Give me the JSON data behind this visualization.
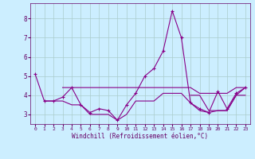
{
  "xlabel": "Windchill (Refroidissement éolien,°C)",
  "background_color": "#cceeff",
  "grid_color": "#aacccc",
  "line_color": "#880088",
  "hours": [
    0,
    1,
    2,
    3,
    4,
    5,
    6,
    7,
    8,
    9,
    10,
    11,
    12,
    13,
    14,
    15,
    16,
    17,
    18,
    19,
    20,
    21,
    22,
    23
  ],
  "line1": [
    5.1,
    3.7,
    3.7,
    3.9,
    4.4,
    3.5,
    3.1,
    3.3,
    3.2,
    2.7,
    3.5,
    4.1,
    5.0,
    5.4,
    6.3,
    8.4,
    7.0,
    3.6,
    3.3,
    3.1,
    4.2,
    3.3,
    4.1,
    4.4
  ],
  "line2_x": [
    3,
    4,
    5,
    6,
    7,
    8,
    9,
    10,
    11,
    12,
    13,
    14,
    15,
    16,
    17,
    18,
    19,
    20,
    21,
    22,
    23
  ],
  "line2_y": [
    4.4,
    4.4,
    4.4,
    4.4,
    4.4,
    4.4,
    4.4,
    4.4,
    4.4,
    4.4,
    4.4,
    4.4,
    4.4,
    4.4,
    4.4,
    4.1,
    4.1,
    4.1,
    4.1,
    4.4,
    4.4
  ],
  "line3_x": [
    1,
    2,
    3,
    4,
    5,
    6,
    7,
    8,
    9,
    10,
    11,
    12,
    13,
    14,
    15,
    16,
    17,
    18,
    19,
    20,
    21,
    22,
    23
  ],
  "line3_y": [
    3.7,
    3.7,
    3.7,
    3.5,
    3.5,
    3.0,
    3.0,
    3.0,
    2.7,
    3.0,
    3.7,
    3.7,
    3.7,
    4.1,
    4.1,
    4.1,
    3.6,
    3.2,
    3.1,
    3.2,
    3.2,
    4.0,
    4.0
  ],
  "line4_x": [
    17,
    18,
    19,
    20,
    21,
    22,
    23
  ],
  "line4_y": [
    4.0,
    4.0,
    3.2,
    3.2,
    3.2,
    4.0,
    4.4
  ],
  "ylim": [
    2.5,
    8.8
  ],
  "yticks": [
    3,
    4,
    5,
    6,
    7,
    8
  ],
  "figsize": [
    3.2,
    2.0
  ],
  "dpi": 100
}
